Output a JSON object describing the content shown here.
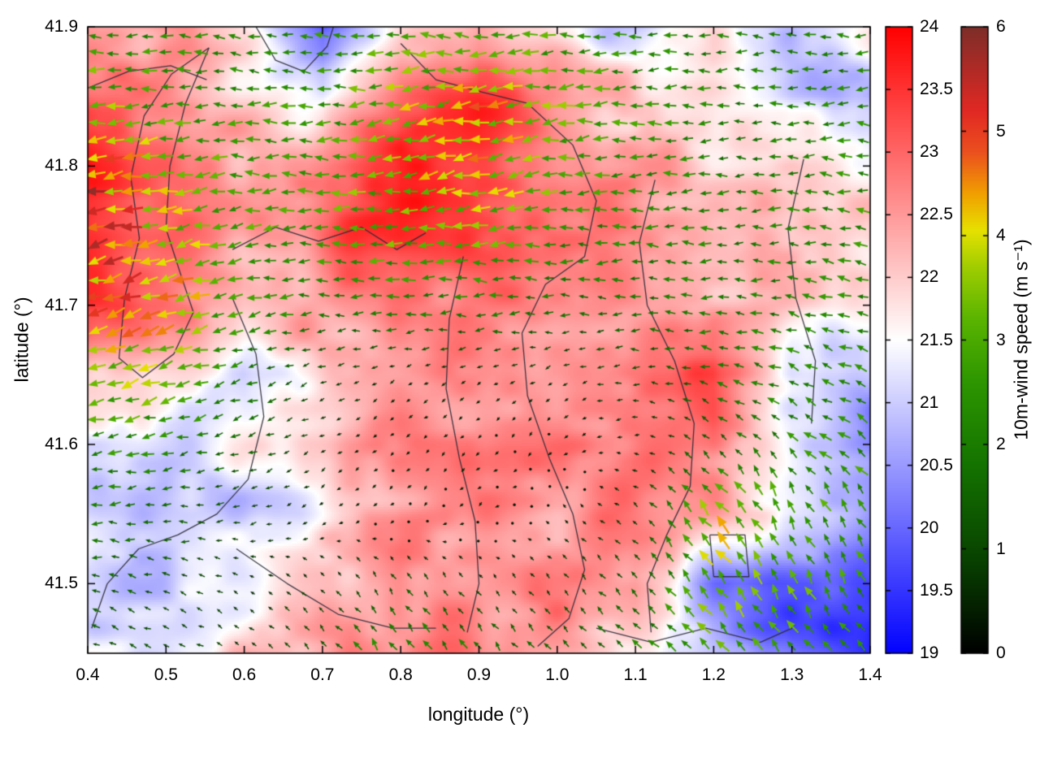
{
  "chart_data": {
    "type": "heatmap",
    "overlay": "vector-field",
    "title": "",
    "xlabel": "longitude (°)",
    "ylabel": "latitude (°)",
    "xlim": [
      0.4,
      1.4
    ],
    "ylim": [
      41.45,
      41.9
    ],
    "x_ticks": [
      0.4,
      0.5,
      0.6,
      0.7,
      0.8,
      0.9,
      1.0,
      1.1,
      1.2,
      1.3,
      1.4
    ],
    "x_tick_labels": [
      "0.4",
      "0.5",
      "0.6",
      "0.7",
      "0.8",
      "0.9",
      "1.0",
      "1.1",
      "1.2",
      "1.3",
      "1.4"
    ],
    "y_ticks": [
      41.5,
      41.6,
      41.7,
      41.8,
      41.9
    ],
    "y_tick_labels": [
      "41.5",
      "41.6",
      "41.7",
      "41.8",
      "41.9"
    ],
    "grid_lons": [
      0.4,
      0.5,
      0.6,
      0.7,
      0.8,
      0.9,
      1.0,
      1.1,
      1.2,
      1.3,
      1.4
    ],
    "grid_lats": [
      41.9,
      41.85,
      41.8,
      41.75,
      41.7,
      41.65,
      41.6,
      41.55,
      41.5,
      41.45
    ],
    "temperature_field": [
      [
        22.6,
        22.4,
        21.6,
        20.0,
        22.0,
        22.6,
        21.6,
        21.0,
        21.6,
        21.0,
        21.4
      ],
      [
        23.0,
        22.6,
        22.0,
        21.4,
        23.2,
        23.6,
        22.6,
        22.0,
        21.6,
        21.0,
        21.0
      ],
      [
        23.6,
        23.0,
        22.4,
        22.6,
        24.0,
        23.6,
        22.8,
        22.4,
        22.0,
        22.0,
        21.6
      ],
      [
        23.6,
        23.2,
        22.6,
        23.0,
        23.6,
        23.2,
        22.6,
        22.6,
        22.4,
        22.0,
        22.0
      ],
      [
        23.8,
        23.0,
        22.0,
        22.4,
        22.6,
        22.6,
        22.6,
        22.6,
        22.4,
        22.0,
        21.6
      ],
      [
        22.4,
        21.6,
        21.2,
        22.0,
        22.4,
        22.6,
        22.6,
        23.0,
        23.4,
        21.2,
        20.6
      ],
      [
        21.2,
        21.0,
        21.4,
        22.0,
        22.8,
        22.6,
        22.6,
        23.0,
        23.0,
        21.5,
        20.6
      ],
      [
        21.0,
        20.8,
        21.0,
        21.6,
        22.6,
        23.0,
        22.6,
        22.6,
        22.6,
        21.6,
        20.6
      ],
      [
        21.2,
        21.0,
        21.4,
        22.0,
        22.6,
        22.6,
        22.6,
        22.4,
        20.6,
        19.8,
        19.8
      ],
      [
        21.4,
        21.4,
        22.0,
        22.4,
        22.6,
        22.6,
        22.6,
        22.0,
        20.8,
        19.8,
        19.6
      ]
    ],
    "wind_u": [
      [
        -2.6,
        -2.4,
        -2.0,
        -2.2,
        -2.6,
        -3.0,
        -2.6,
        -2.2,
        -2.0,
        -2.0,
        -2.0
      ],
      [
        -3.0,
        -2.6,
        -2.2,
        -2.6,
        -3.2,
        -3.8,
        -3.0,
        -2.4,
        -2.0,
        -2.0,
        -2.0
      ],
      [
        -4.6,
        -3.2,
        -2.6,
        -2.6,
        -3.6,
        -4.0,
        -3.0,
        -2.4,
        -2.0,
        -2.0,
        -2.4
      ],
      [
        -5.0,
        -3.8,
        -2.6,
        -2.6,
        -3.0,
        -3.0,
        -2.4,
        -2.0,
        -2.0,
        -2.0,
        -2.4
      ],
      [
        -4.2,
        -4.0,
        -2.4,
        -2.0,
        -2.0,
        -2.0,
        -1.6,
        -1.6,
        -2.0,
        -2.0,
        -2.4
      ],
      [
        -3.0,
        -3.4,
        -1.8,
        -0.9,
        -0.5,
        -0.5,
        -0.5,
        -1.0,
        -1.6,
        -2.0,
        -2.0
      ],
      [
        -2.4,
        -2.0,
        -1.4,
        -0.5,
        -0.3,
        -0.3,
        -0.3,
        -0.5,
        -1.0,
        -1.6,
        -2.0
      ],
      [
        -2.0,
        -1.5,
        -0.9,
        -0.4,
        -0.3,
        -0.3,
        -0.3,
        -0.6,
        -2.4,
        -1.2,
        -1.6
      ],
      [
        -1.5,
        -1.0,
        -0.5,
        -0.5,
        -0.6,
        -0.4,
        -0.5,
        -1.0,
        -2.0,
        -1.6,
        -1.2
      ],
      [
        -1.0,
        -1.0,
        -0.6,
        -1.0,
        -1.6,
        -1.2,
        -1.0,
        -1.5,
        -2.0,
        -1.6,
        -1.2
      ]
    ],
    "wind_v": [
      [
        0.0,
        0.0,
        0.2,
        0.5,
        0.4,
        0.3,
        0.0,
        0.0,
        0.0,
        0.0,
        0.0
      ],
      [
        -0.3,
        0.0,
        0.0,
        0.0,
        -0.5,
        -0.8,
        -0.5,
        0.0,
        0.0,
        0.0,
        0.0
      ],
      [
        -1.0,
        -0.5,
        0.0,
        0.0,
        -0.8,
        -1.0,
        -0.5,
        0.0,
        0.0,
        0.0,
        0.2
      ],
      [
        -1.2,
        -1.0,
        -0.5,
        0.0,
        0.0,
        0.0,
        0.0,
        0.0,
        0.0,
        0.0,
        0.4
      ],
      [
        -1.0,
        -1.4,
        -0.5,
        0.0,
        0.0,
        0.0,
        0.0,
        0.0,
        0.0,
        0.4,
        0.5
      ],
      [
        -1.0,
        -1.0,
        -0.5,
        -0.4,
        -0.3,
        -0.3,
        -0.3,
        0.0,
        0.5,
        0.9,
        1.0
      ],
      [
        -0.5,
        -0.5,
        -0.5,
        -0.3,
        -0.3,
        -0.3,
        -0.3,
        0.0,
        1.0,
        1.5,
        1.5
      ],
      [
        0.0,
        0.0,
        -0.3,
        -0.3,
        -0.3,
        -0.3,
        0.3,
        0.5,
        2.8,
        2.6,
        2.0
      ],
      [
        0.4,
        0.3,
        0.3,
        0.5,
        1.0,
        0.5,
        0.5,
        1.0,
        2.6,
        2.6,
        2.0
      ],
      [
        0.5,
        0.5,
        0.5,
        1.0,
        2.0,
        1.5,
        1.0,
        1.5,
        2.2,
        2.0,
        1.6
      ]
    ],
    "contours": [
      [
        [
          0.555,
          41.885
        ],
        [
          0.525,
          41.845
        ],
        [
          0.505,
          41.8
        ],
        [
          0.5,
          41.755
        ],
        [
          0.52,
          41.72
        ],
        [
          0.535,
          41.695
        ],
        [
          0.51,
          41.665
        ],
        [
          0.47,
          41.648
        ],
        [
          0.44,
          41.662
        ],
        [
          0.447,
          41.705
        ],
        [
          0.466,
          41.748
        ],
        [
          0.455,
          41.792
        ],
        [
          0.472,
          41.836
        ],
        [
          0.507,
          41.866
        ],
        [
          0.555,
          41.885
        ]
      ],
      [
        [
          0.4,
          41.856
        ],
        [
          0.452,
          41.868
        ],
        [
          0.506,
          41.872
        ],
        [
          0.552,
          41.862
        ]
      ],
      [
        [
          0.615,
          41.9
        ],
        [
          0.64,
          41.876
        ],
        [
          0.676,
          41.868
        ],
        [
          0.706,
          41.886
        ],
        [
          0.714,
          41.9
        ]
      ],
      [
        [
          0.8,
          41.888
        ],
        [
          0.845,
          41.862
        ],
        [
          0.905,
          41.853
        ],
        [
          0.962,
          41.845
        ],
        [
          1.02,
          41.815
        ],
        [
          1.05,
          41.775
        ],
        [
          1.035,
          41.735
        ],
        [
          0.985,
          41.715
        ],
        [
          0.955,
          41.68
        ],
        [
          0.962,
          41.635
        ],
        [
          0.99,
          41.59
        ],
        [
          1.02,
          41.55
        ],
        [
          1.035,
          41.51
        ],
        [
          1.015,
          41.475
        ],
        [
          0.975,
          41.455
        ]
      ],
      [
        [
          0.88,
          41.735
        ],
        [
          0.862,
          41.69
        ],
        [
          0.858,
          41.64
        ],
        [
          0.875,
          41.59
        ],
        [
          0.895,
          41.545
        ],
        [
          0.9,
          41.5
        ],
        [
          0.885,
          41.465
        ]
      ],
      [
        [
          0.585,
          41.74
        ],
        [
          0.64,
          41.756
        ],
        [
          0.695,
          41.746
        ],
        [
          0.75,
          41.756
        ],
        [
          0.795,
          41.74
        ],
        [
          0.832,
          41.752
        ]
      ],
      [
        [
          0.585,
          41.705
        ],
        [
          0.615,
          41.665
        ],
        [
          0.625,
          41.62
        ],
        [
          0.605,
          41.575
        ],
        [
          0.565,
          41.55
        ],
        [
          0.515,
          41.535
        ],
        [
          0.465,
          41.525
        ],
        [
          0.425,
          41.5
        ],
        [
          0.405,
          41.468
        ]
      ],
      [
        [
          1.125,
          41.79
        ],
        [
          1.105,
          41.745
        ],
        [
          1.115,
          41.7
        ],
        [
          1.15,
          41.66
        ],
        [
          1.175,
          41.615
        ],
        [
          1.17,
          41.57
        ],
        [
          1.14,
          41.535
        ],
        [
          1.115,
          41.5
        ],
        [
          1.12,
          41.465
        ]
      ],
      [
        [
          1.315,
          41.805
        ],
        [
          1.295,
          41.755
        ],
        [
          1.305,
          41.705
        ],
        [
          1.33,
          41.66
        ],
        [
          1.325,
          41.615
        ]
      ],
      [
        [
          0.59,
          41.525
        ],
        [
          0.655,
          41.5
        ],
        [
          0.72,
          41.478
        ],
        [
          0.79,
          41.468
        ],
        [
          0.845,
          41.468
        ]
      ],
      [
        [
          1.05,
          41.468
        ],
        [
          1.12,
          41.458
        ],
        [
          1.19,
          41.468
        ],
        [
          1.26,
          41.458
        ],
        [
          1.3,
          41.468
        ]
      ],
      [
        [
          1.195,
          41.535
        ],
        [
          1.24,
          41.535
        ],
        [
          1.245,
          41.505
        ],
        [
          1.2,
          41.505
        ],
        [
          1.195,
          41.535
        ]
      ]
    ],
    "colorbar_temp": {
      "range": [
        19,
        24
      ],
      "ticks": [
        19,
        19.5,
        20,
        20.5,
        21,
        21.5,
        22,
        22.5,
        23,
        23.5,
        24
      ],
      "tick_labels": [
        "19",
        "19.5",
        "20",
        "20.5",
        "21",
        "21.5",
        "22",
        "22.5",
        "23",
        "23.5",
        "24"
      ],
      "stops": [
        [
          19,
          "#0202ff"
        ],
        [
          21.5,
          "#ffffff"
        ],
        [
          24,
          "#ff0000"
        ]
      ]
    },
    "colorbar_wind": {
      "label": "10m-wind speed (m s⁻¹)",
      "range": [
        0,
        6
      ],
      "ticks": [
        0,
        1,
        2,
        3,
        4,
        5,
        6
      ],
      "tick_labels": [
        "0",
        "1",
        "2",
        "3",
        "4",
        "5",
        "6"
      ],
      "stops": [
        [
          0,
          "#000000"
        ],
        [
          0.9,
          "#084200"
        ],
        [
          1.8,
          "#147300"
        ],
        [
          2.6,
          "#2d9600"
        ],
        [
          3.2,
          "#5ab400"
        ],
        [
          3.7,
          "#a0cd00"
        ],
        [
          4.05,
          "#e6e100"
        ],
        [
          4.4,
          "#f0a000"
        ],
        [
          4.8,
          "#eb501e"
        ],
        [
          5.2,
          "#e12823"
        ],
        [
          6,
          "#7d2d28"
        ]
      ]
    }
  }
}
